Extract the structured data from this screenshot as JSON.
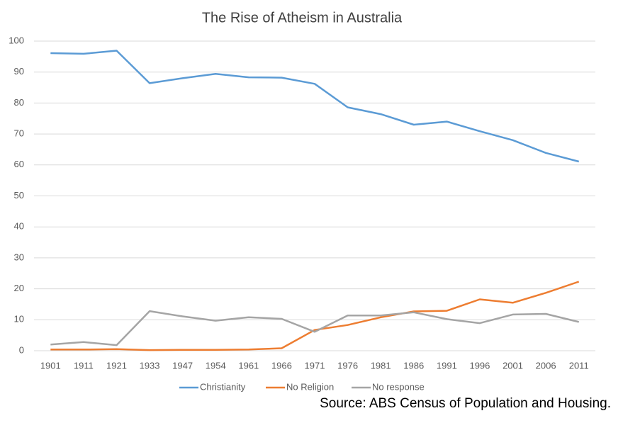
{
  "chart_data": {
    "type": "line",
    "title": "The Rise of Atheism in Australia",
    "annotation": "Source: ABS Census of Population and Housing.",
    "categories": [
      "1901",
      "1911",
      "1921",
      "1933",
      "1947",
      "1954",
      "1961",
      "1966",
      "1971",
      "1976",
      "1981",
      "1986",
      "1991",
      "1996",
      "2001",
      "2006",
      "2011"
    ],
    "series": [
      {
        "name": "Christianity",
        "color": "#5b9bd5",
        "values": [
          96.1,
          95.9,
          96.9,
          86.4,
          88.0,
          89.4,
          88.3,
          88.2,
          86.2,
          78.6,
          76.4,
          73.0,
          74.0,
          70.9,
          68.0,
          63.9,
          61.1
        ]
      },
      {
        "name": "No Religion",
        "color": "#ed7d31",
        "values": [
          0.4,
          0.4,
          0.5,
          0.2,
          0.3,
          0.3,
          0.4,
          0.8,
          6.7,
          8.3,
          10.8,
          12.7,
          12.9,
          16.6,
          15.5,
          18.7,
          22.3
        ]
      },
      {
        "name": "No response",
        "color": "#a5a5a5",
        "values": [
          2.0,
          2.8,
          1.8,
          12.8,
          11.1,
          9.7,
          10.8,
          10.3,
          6.1,
          11.4,
          11.4,
          12.4,
          10.2,
          8.9,
          11.7,
          11.9,
          9.3
        ]
      }
    ],
    "ylim": [
      0,
      100
    ],
    "yticks": [
      0,
      10,
      20,
      30,
      40,
      50,
      60,
      70,
      80,
      90,
      100
    ],
    "grid": true,
    "legend": "bottom"
  }
}
